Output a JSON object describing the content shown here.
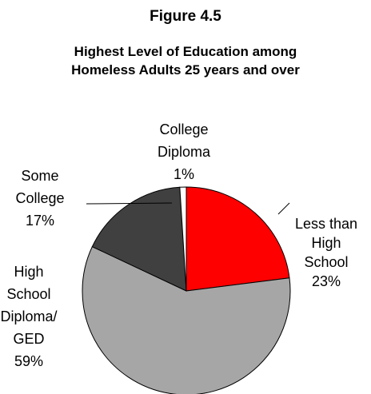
{
  "figure_label": "Figure 4.5",
  "chart_data": {
    "type": "pie",
    "title_lines": [
      "Highest Level of Education among",
      "Homeless Adults 25 years and over"
    ],
    "slices": [
      {
        "label_lines": [
          "Less than",
          "High",
          "School"
        ],
        "pct_label": "23%",
        "value": 23,
        "color": "#ff0000"
      },
      {
        "label_lines": [
          "High",
          "School",
          "Diploma/",
          "GED"
        ],
        "pct_label": "59%",
        "value": 59,
        "color": "#a6a6a6"
      },
      {
        "label_lines": [
          "Some",
          "College"
        ],
        "pct_label": "17%",
        "value": 17,
        "color": "#404040"
      },
      {
        "label_lines": [
          "College",
          "Diploma"
        ],
        "pct_label": "1%",
        "value": 1,
        "color": "#ffffff"
      }
    ],
    "start_angle_deg": 0,
    "direction": "clockwise",
    "legend": "none"
  }
}
